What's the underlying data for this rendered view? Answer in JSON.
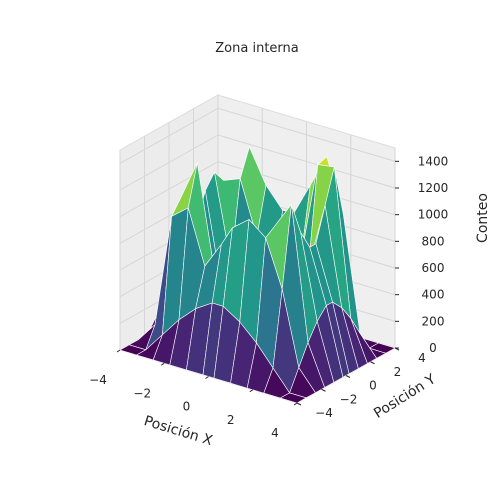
{
  "chart_data": {
    "type": "surface3d",
    "title": "Zona interna",
    "xlabel": "Posición X",
    "ylabel": "Posición Y",
    "zlabel": "Conteo",
    "xlim": [
      -4,
      4
    ],
    "ylim": [
      -4,
      4
    ],
    "zlim": [
      0,
      1500
    ],
    "xticks": [
      "−4",
      "−2",
      "0",
      "2",
      "4"
    ],
    "yticks": [
      "−4",
      "−2",
      "0",
      "2",
      "4"
    ],
    "zticks": [
      "0",
      "200",
      "400",
      "600",
      "800",
      "1000",
      "1200",
      "1400"
    ],
    "colormap": "viridis",
    "edgecolor": "#ffffff",
    "grid": true,
    "x": [
      -4.0,
      -3.25,
      -2.5,
      -1.75,
      -1.0,
      -0.25,
      0.25,
      1.0,
      1.75,
      2.5,
      3.25,
      4.0
    ],
    "y": [
      -4.0,
      -3.25,
      -2.5,
      -1.75,
      -1.0,
      -0.25,
      0.25,
      1.0,
      1.75,
      2.5,
      3.25,
      4.0
    ],
    "z": [
      [
        0,
        0,
        0,
        0,
        0,
        0,
        0,
        0,
        0,
        0,
        0,
        0
      ],
      [
        0,
        0,
        150,
        300,
        420,
        500,
        500,
        420,
        300,
        150,
        0,
        0
      ],
      [
        0,
        150,
        1000,
        1100,
        700,
        900,
        1050,
        1150,
        1050,
        700,
        150,
        0
      ],
      [
        0,
        300,
        1100,
        1400,
        650,
        420,
        350,
        500,
        1100,
        1300,
        300,
        0
      ],
      [
        0,
        420,
        700,
        650,
        400,
        300,
        350,
        380,
        700,
        1050,
        420,
        0
      ],
      [
        0,
        500,
        900,
        420,
        300,
        250,
        250,
        300,
        380,
        900,
        500,
        0
      ],
      [
        0,
        500,
        1050,
        350,
        350,
        250,
        250,
        300,
        420,
        900,
        500,
        0
      ],
      [
        0,
        420,
        1150,
        500,
        380,
        300,
        300,
        380,
        650,
        1150,
        420,
        0
      ],
      [
        0,
        300,
        1050,
        1100,
        700,
        380,
        420,
        650,
        1380,
        1400,
        300,
        0
      ],
      [
        0,
        150,
        700,
        1300,
        1050,
        900,
        900,
        1150,
        1400,
        1000,
        150,
        0
      ],
      [
        0,
        0,
        150,
        300,
        420,
        500,
        500,
        420,
        300,
        150,
        0,
        0
      ],
      [
        0,
        0,
        0,
        0,
        0,
        0,
        0,
        0,
        0,
        0,
        0,
        0
      ]
    ]
  }
}
